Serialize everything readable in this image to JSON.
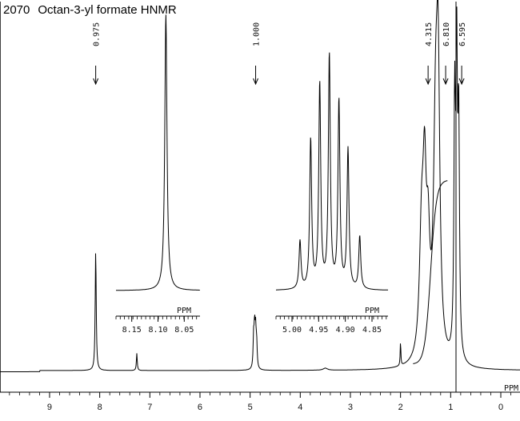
{
  "title": {
    "number": "2070",
    "text": "Octan-3-yl formate HNMR"
  },
  "chart_data": {
    "type": "line",
    "title": "Octan-3-yl formate HNMR",
    "xlabel": "PPM",
    "xlim": [
      10.0,
      -0.3
    ],
    "x_reversed": true,
    "x_ticks": [
      9,
      8,
      7,
      6,
      5,
      4,
      3,
      2,
      1,
      0
    ],
    "integrations": [
      {
        "label": "0.975",
        "x": 8.08
      },
      {
        "label": "1.000",
        "x": 4.89
      },
      {
        "label": "4.315",
        "x": 1.45
      },
      {
        "label": "6.810",
        "x": 1.1
      },
      {
        "label": "6.595",
        "x": 0.78
      }
    ],
    "peaks": [
      {
        "x": 8.08,
        "height": 0.35,
        "width": 0.012
      },
      {
        "x": 7.26,
        "height": 0.05,
        "width": 0.01
      },
      {
        "x": 4.93,
        "height": 0.09,
        "width": 0.012
      },
      {
        "x": 4.91,
        "height": 0.11,
        "width": 0.012
      },
      {
        "x": 4.89,
        "height": 0.1,
        "width": 0.012
      },
      {
        "x": 4.87,
        "height": 0.07,
        "width": 0.012
      },
      {
        "x": 3.5,
        "height": 0.006,
        "width": 0.05
      },
      {
        "x": 2.0,
        "height": 0.07,
        "width": 0.008
      },
      {
        "x": 1.58,
        "height": 0.35,
        "width": 0.05
      },
      {
        "x": 1.52,
        "height": 0.45,
        "width": 0.04
      },
      {
        "x": 1.45,
        "height": 0.28,
        "width": 0.04
      },
      {
        "x": 1.3,
        "height": 0.62,
        "width": 0.05
      },
      {
        "x": 1.25,
        "height": 0.72,
        "width": 0.04
      },
      {
        "x": 0.92,
        "height": 0.7,
        "width": 0.018
      },
      {
        "x": 0.88,
        "height": 0.82,
        "width": 0.018
      },
      {
        "x": 0.84,
        "height": 0.66,
        "width": 0.018
      }
    ],
    "insets": [
      {
        "name": "formate-proton",
        "xlabel": "PPM",
        "xlim": [
          8.18,
          8.02
        ],
        "x_ticks": [
          8.15,
          8.1,
          8.05
        ],
        "tick_labels": [
          "8.15",
          "8.10",
          "8.05"
        ],
        "peaks": [
          {
            "x": 8.085,
            "height": 1.0,
            "width": 0.0025
          }
        ]
      },
      {
        "name": "methine-proton",
        "xlabel": "PPM",
        "xlim": [
          5.03,
          4.82
        ],
        "x_ticks": [
          5.0,
          4.95,
          4.9,
          4.85
        ],
        "tick_labels": [
          "5.00",
          "4.95",
          "4.90",
          "4.85"
        ],
        "peaks": [
          {
            "x": 4.985,
            "height": 0.2,
            "width": 0.0022
          },
          {
            "x": 4.965,
            "height": 0.62,
            "width": 0.0022
          },
          {
            "x": 4.948,
            "height": 0.85,
            "width": 0.0022
          },
          {
            "x": 4.93,
            "height": 0.97,
            "width": 0.0022
          },
          {
            "x": 4.912,
            "height": 0.78,
            "width": 0.0022
          },
          {
            "x": 4.895,
            "height": 0.58,
            "width": 0.0022
          },
          {
            "x": 4.873,
            "height": 0.22,
            "width": 0.0022
          }
        ]
      }
    ]
  }
}
